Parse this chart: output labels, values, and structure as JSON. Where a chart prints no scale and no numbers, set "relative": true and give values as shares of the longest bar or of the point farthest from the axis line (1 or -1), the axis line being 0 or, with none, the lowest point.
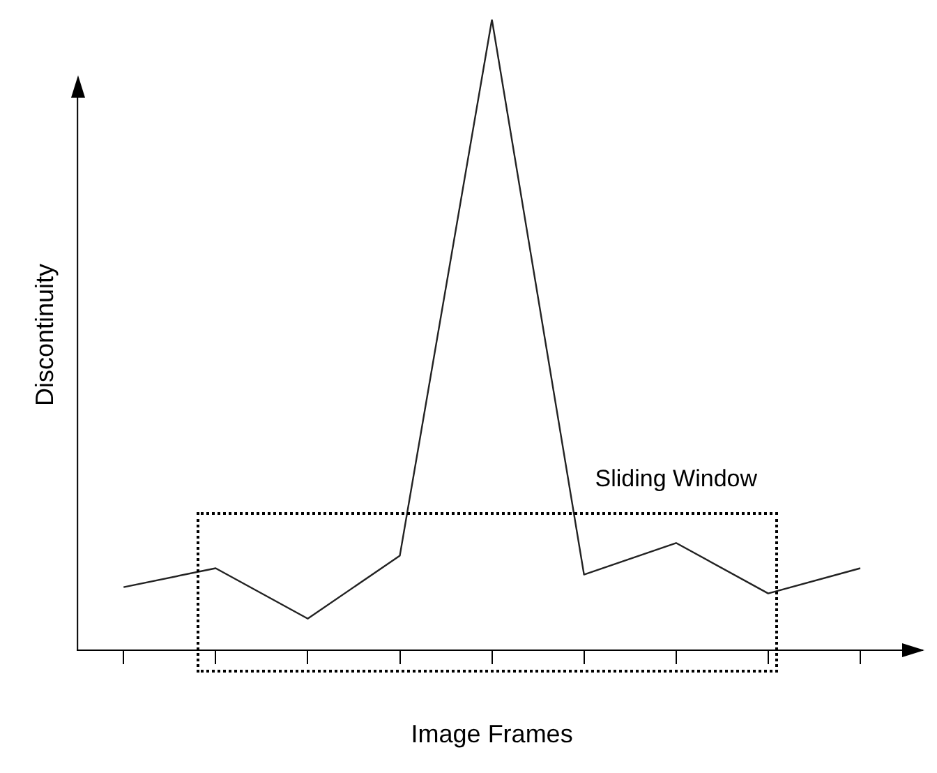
{
  "chart_data": {
    "type": "line",
    "relative": true,
    "categories": [
      null,
      null,
      null,
      null,
      null,
      null,
      null,
      null,
      null
    ],
    "values": [
      0.1,
      0.13,
      0.05,
      0.15,
      1,
      0.12,
      0.17,
      0.09,
      0.13
    ],
    "color": "#222222",
    "xlabel": "Image Frames",
    "ylabel": "Discontinuity",
    "annotations": [
      "Sliding Window"
    ],
    "marker": "none",
    "grid": false,
    "legend": false
  }
}
